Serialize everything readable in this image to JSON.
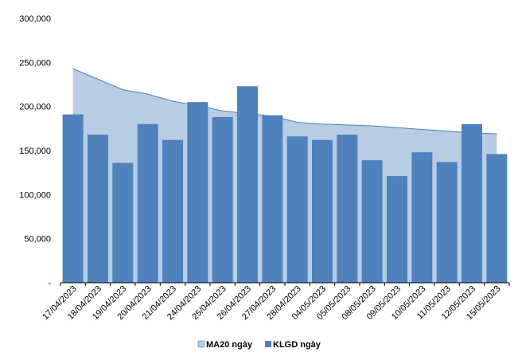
{
  "chart_data": {
    "type": "bar",
    "categories": [
      "17/04/2023",
      "18/04/2023",
      "19/04/2023",
      "20/04/2023",
      "21/04/2023",
      "24/04/2023",
      "25/04/2023",
      "26/04/2023",
      "27/04/2023",
      "28/04/2023",
      "04/05/2023",
      "05/05/2023",
      "08/05/2023",
      "09/05/2023",
      "10/05/2023",
      "11/05/2023",
      "12/05/2023",
      "15/05/2023"
    ],
    "ylim": [
      0,
      300000
    ],
    "yticks": [
      0,
      50000,
      100000,
      150000,
      200000,
      250000,
      300000
    ],
    "ytick_labels": [
      "-",
      "50,000",
      "100,000",
      "150,000",
      "200,000",
      "250,000",
      "300,000"
    ],
    "grid": false,
    "legend_position": "bottom",
    "series": [
      {
        "name": "MA20 ngày",
        "type": "area",
        "color": "#b8cce4",
        "line_color": "#4f81bd",
        "values": [
          243000,
          231000,
          219000,
          214000,
          206000,
          201000,
          195000,
          192000,
          189000,
          182000,
          180000,
          179000,
          178000,
          176000,
          174000,
          172000,
          170000,
          169000
        ]
      },
      {
        "name": "KLGD ngày",
        "type": "bar",
        "color": "#4f81bd",
        "values": [
          191000,
          168000,
          136000,
          180000,
          162000,
          205000,
          188000,
          223000,
          190000,
          166000,
          162000,
          168000,
          139000,
          121000,
          148000,
          137000,
          180000,
          146000
        ]
      }
    ]
  }
}
